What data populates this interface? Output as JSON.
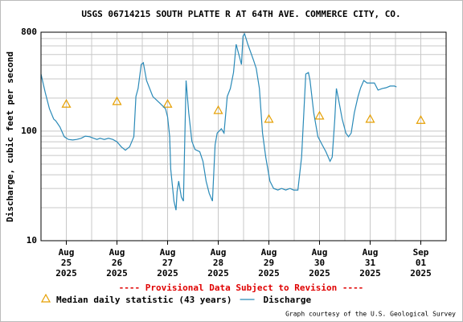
{
  "chart_data": {
    "type": "line",
    "title": "USGS 06714215 SOUTH PLATTE R AT 64TH AVE. COMMERCE CITY, CO.",
    "ylabel": "Discharge, cubic feet per second",
    "note": "---- Provisional Data Subject to Revision ----",
    "credit": "Graph courtesy of the U.S. Geological Survey",
    "log_y": true,
    "grid": true,
    "xlim": [
      "2025-08-24T12:00",
      "2025-09-01T12:00"
    ],
    "xticks": [
      {
        "value": "2025-08-25",
        "label": "Aug\n25\n2025"
      },
      {
        "value": "2025-08-26",
        "label": "Aug\n26\n2025"
      },
      {
        "value": "2025-08-27",
        "label": "Aug\n27\n2025"
      },
      {
        "value": "2025-08-28",
        "label": "Aug\n28\n2025"
      },
      {
        "value": "2025-08-29",
        "label": "Aug\n29\n2025"
      },
      {
        "value": "2025-08-30",
        "label": "Aug\n30\n2025"
      },
      {
        "value": "2025-08-31",
        "label": "Aug\n31\n2025"
      },
      {
        "value": "2025-09-01",
        "label": "Sep\n01\n2025"
      }
    ],
    "ylim": [
      10,
      800
    ],
    "yticks": [
      10,
      100,
      800
    ],
    "series": [
      {
        "name": "Median daily statistic (43 years)",
        "color": "#e69f00",
        "marker": "triangle",
        "x": [
          "2025-08-25",
          "2025-08-26",
          "2025-08-27",
          "2025-08-28",
          "2025-08-29",
          "2025-08-30",
          "2025-08-31",
          "2025-09-01"
        ],
        "values": [
          177,
          187,
          177,
          155,
          129,
          138,
          129,
          126
        ]
      },
      {
        "name": "Discharge",
        "color": "#2a8ab8",
        "marker": "line",
        "x": [
          "2025-08-24T12:00",
          "2025-08-24T14:00",
          "2025-08-24T16:00",
          "2025-08-24T18:00",
          "2025-08-24T19:00",
          "2025-08-24T21:00",
          "2025-08-24T23:00",
          "2025-08-25T01:00",
          "2025-08-25T03:00",
          "2025-08-25T05:00",
          "2025-08-25T07:00",
          "2025-08-25T09:00",
          "2025-08-25T11:00",
          "2025-08-25T13:00",
          "2025-08-25T14:30",
          "2025-08-25T16:00",
          "2025-08-25T18:00",
          "2025-08-25T20:00",
          "2025-08-25T22:00",
          "2025-08-26T00:00",
          "2025-08-26T02:00",
          "2025-08-26T04:00",
          "2025-08-26T06:00",
          "2025-08-26T08:00",
          "2025-08-26T09:00",
          "2025-08-26T10:00",
          "2025-08-26T11:30",
          "2025-08-26T12:30",
          "2025-08-26T14:00",
          "2025-08-26T17:00",
          "2025-08-26T21:00",
          "2025-08-26T23:00",
          "2025-08-27T00:00",
          "2025-08-27T01:00",
          "2025-08-27T01:30",
          "2025-08-27T03:00",
          "2025-08-27T04:00",
          "2025-08-27T04:30",
          "2025-08-27T05:15",
          "2025-08-27T06:30",
          "2025-08-27T07:30",
          "2025-08-27T08:45",
          "2025-08-27T10:00",
          "2025-08-27T11:30",
          "2025-08-27T13:00",
          "2025-08-27T15:15",
          "2025-08-27T16:45",
          "2025-08-27T18:15",
          "2025-08-27T19:45",
          "2025-08-27T21:15",
          "2025-08-27T22:30",
          "2025-08-27T23:30",
          "2025-08-28T01:30",
          "2025-08-28T02:45",
          "2025-08-28T04:15",
          "2025-08-28T05:45",
          "2025-08-28T07:15",
          "2025-08-28T08:30",
          "2025-08-28T09:30",
          "2025-08-28T11:00",
          "2025-08-28T11:45",
          "2025-08-28T12:30",
          "2025-08-28T14:00",
          "2025-08-28T16:45",
          "2025-08-28T18:00",
          "2025-08-28T19:30",
          "2025-08-28T21:00",
          "2025-08-28T22:30",
          "2025-08-29T00:30",
          "2025-08-29T02:15",
          "2025-08-29T04:15",
          "2025-08-29T06:00",
          "2025-08-29T08:00",
          "2025-08-29T10:00",
          "2025-08-29T11:45",
          "2025-08-29T13:45",
          "2025-08-29T15:30",
          "2025-08-29T16:45",
          "2025-08-29T17:30",
          "2025-08-29T18:45",
          "2025-08-29T19:30",
          "2025-08-29T21:15",
          "2025-08-29T23:15",
          "2025-08-30T01:15",
          "2025-08-30T03:00",
          "2025-08-30T05:00",
          "2025-08-30T06:00",
          "2025-08-30T07:15",
          "2025-08-30T08:00",
          "2025-08-30T08:45",
          "2025-08-30T10:45",
          "2025-08-30T12:30",
          "2025-08-30T13:45",
          "2025-08-30T15:00",
          "2025-08-30T16:30",
          "2025-08-30T18:15",
          "2025-08-30T19:30",
          "2025-08-30T21:00",
          "2025-08-30T22:30",
          "2025-08-31T00:00",
          "2025-08-31T02:00",
          "2025-08-31T03:45",
          "2025-08-31T05:45",
          "2025-08-31T07:30",
          "2025-08-31T09:30",
          "2025-08-31T11:30",
          "2025-08-31T12:30"
        ],
        "values": [
          332,
          225,
          160,
          129,
          124,
          109,
          89,
          84,
          83,
          84,
          86,
          90,
          89,
          86,
          84,
          86,
          84,
          86,
          84,
          80,
          72,
          67,
          72,
          89,
          207,
          245,
          406,
          421,
          290,
          207,
          175,
          160,
          135,
          89,
          45,
          23,
          19,
          28,
          35,
          25,
          23,
          290,
          147,
          81,
          68,
          65,
          53,
          35,
          27,
          23,
          75,
          96,
          105,
          96,
          207,
          245,
          343,
          621,
          524,
          406,
          735,
          773,
          621,
          442,
          373,
          245,
          96,
          58,
          35,
          30,
          29,
          30,
          29,
          30,
          29,
          29,
          58,
          175,
          332,
          343,
          290,
          147,
          89,
          75,
          65,
          53,
          58,
          129,
          245,
          207,
          129,
          96,
          89,
          96,
          147,
          207,
          249,
          290,
          275,
          275,
          275,
          237,
          245,
          249,
          258,
          258,
          253
        ]
      }
    ]
  }
}
